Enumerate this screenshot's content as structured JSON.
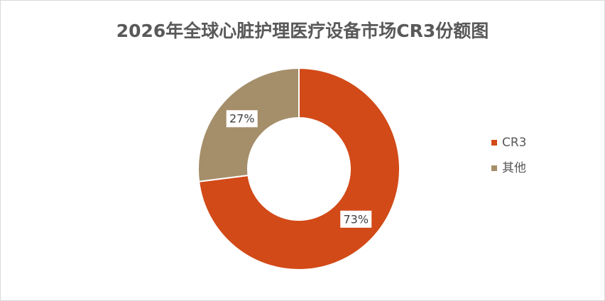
{
  "chart_data": {
    "type": "pie",
    "title": "2026年全球心脏护理医疗设备市场CR3份额图",
    "categories": [
      "CR3",
      "其他"
    ],
    "values": [
      73,
      27
    ],
    "value_labels": [
      "73%",
      "27%"
    ],
    "colors": [
      "#d24a18",
      "#a58e6a"
    ],
    "donut": true,
    "legend": "right"
  }
}
